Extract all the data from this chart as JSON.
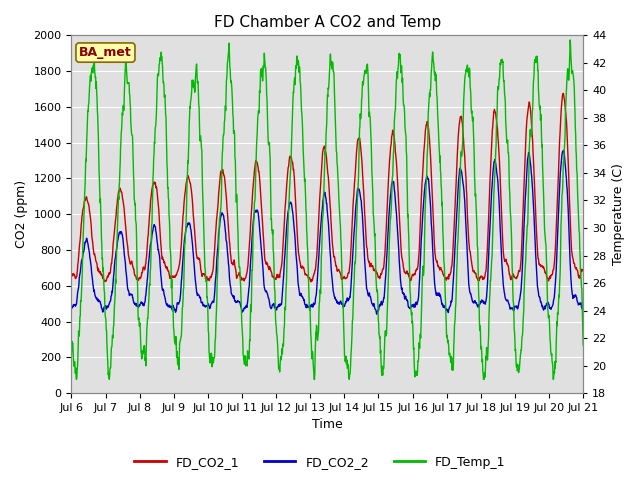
{
  "title": "FD Chamber A CO2 and Temp",
  "xlabel": "Time",
  "ylabel_left": "CO2 (ppm)",
  "ylabel_right": "Temperature (C)",
  "co2_ylim": [
    0,
    2000
  ],
  "temp_ylim": [
    18,
    44
  ],
  "x_tick_labels": [
    "Jul 6",
    "Jul 7",
    "Jul 8",
    "Jul 9",
    "Jul 10",
    "Jul 11",
    "Jul 12",
    "Jul 13",
    "Jul 14",
    "Jul 15",
    "Jul 16",
    "Jul 17",
    "Jul 18",
    "Jul 19",
    "Jul 20",
    "Jul 21"
  ],
  "legend_labels": [
    "FD_CO2_1",
    "FD_CO2_2",
    "FD_Temp_1"
  ],
  "colors": [
    "#cc0000",
    "#0000cc",
    "#00bb00"
  ],
  "annotation_text": "BA_met",
  "annotation_bg": "#ffffaa",
  "annotation_border": "#886600",
  "bg_color": "#e0e0e0",
  "title_fontsize": 11,
  "axis_fontsize": 9,
  "tick_fontsize": 8,
  "legend_fontsize": 9,
  "linewidth": 1.0,
  "n_points": 1500
}
